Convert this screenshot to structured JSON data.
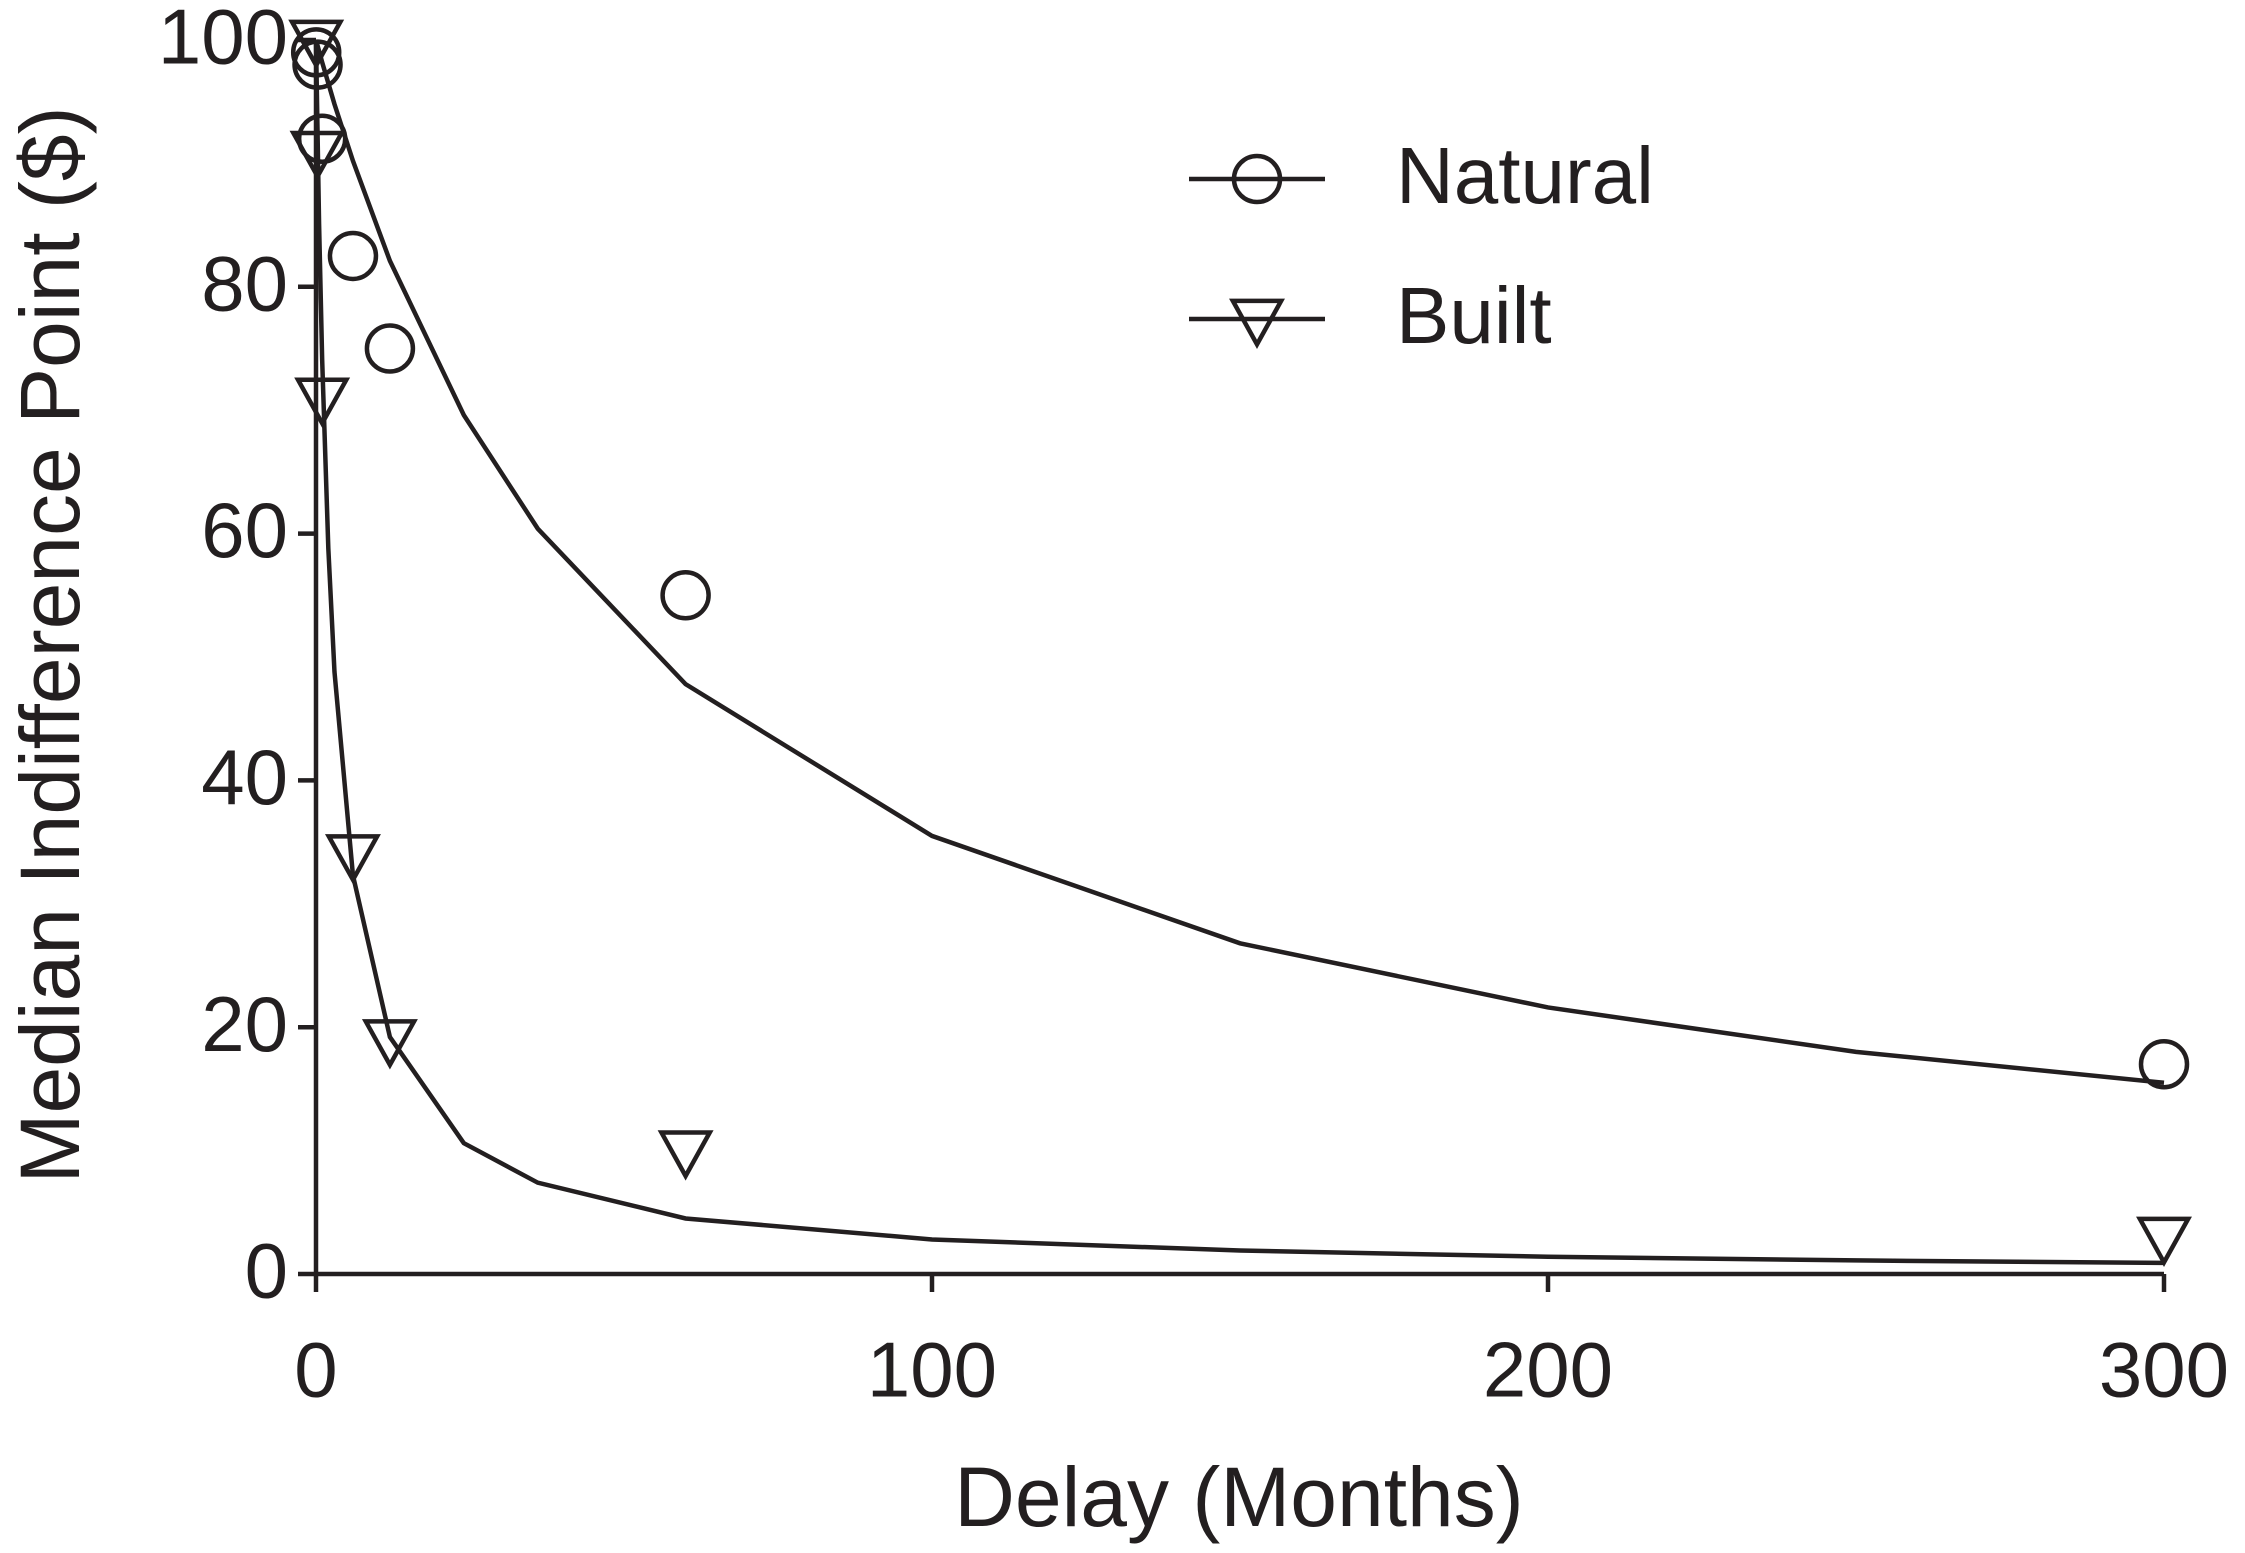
{
  "chart_data": {
    "type": "scatter",
    "x_label": "Delay (Months)",
    "y_label": "Median Indifference Point ($)",
    "xlim": [
      0,
      300
    ],
    "ylim": [
      0,
      100
    ],
    "xticks": [
      0,
      100,
      200,
      300
    ],
    "yticks": [
      0,
      20,
      40,
      60,
      80,
      100
    ],
    "legend": "upper right",
    "series": [
      {
        "name": "Natural",
        "marker": "circle",
        "color": "#231f20",
        "x": [
          0.033,
          0.25,
          1,
          6,
          12,
          60,
          300
        ],
        "values": [
          99,
          98,
          92,
          82.5,
          75,
          55,
          17
        ]
      },
      {
        "name": "Built",
        "marker": "triangle-down",
        "color": "#231f20",
        "x": [
          0.033,
          0.25,
          1,
          6,
          12,
          60,
          300
        ],
        "values": [
          100,
          91,
          71,
          34,
          19,
          10,
          3
        ]
      }
    ],
    "curves": [
      {
        "color": "#231f20",
        "x": [
          0,
          0.5,
          1,
          2,
          3,
          6,
          12,
          24,
          36,
          60,
          100,
          150,
          200,
          250,
          300
        ],
        "values": [
          100,
          99.1,
          98.2,
          96.5,
          94.8,
          90.2,
          82.1,
          69.6,
          60.4,
          47.8,
          35.5,
          26.8,
          21.6,
          18.0,
          15.5
        ]
      },
      {
        "color": "#231f20",
        "x": [
          0,
          0.5,
          1,
          2,
          3,
          6,
          12,
          24,
          36,
          60,
          100,
          150,
          200,
          250,
          300
        ],
        "values": [
          100,
          85.1,
          74.1,
          58.8,
          48.8,
          32.3,
          19.2,
          10.6,
          7.4,
          4.5,
          2.8,
          1.9,
          1.4,
          1.1,
          0.9
        ]
      }
    ]
  }
}
